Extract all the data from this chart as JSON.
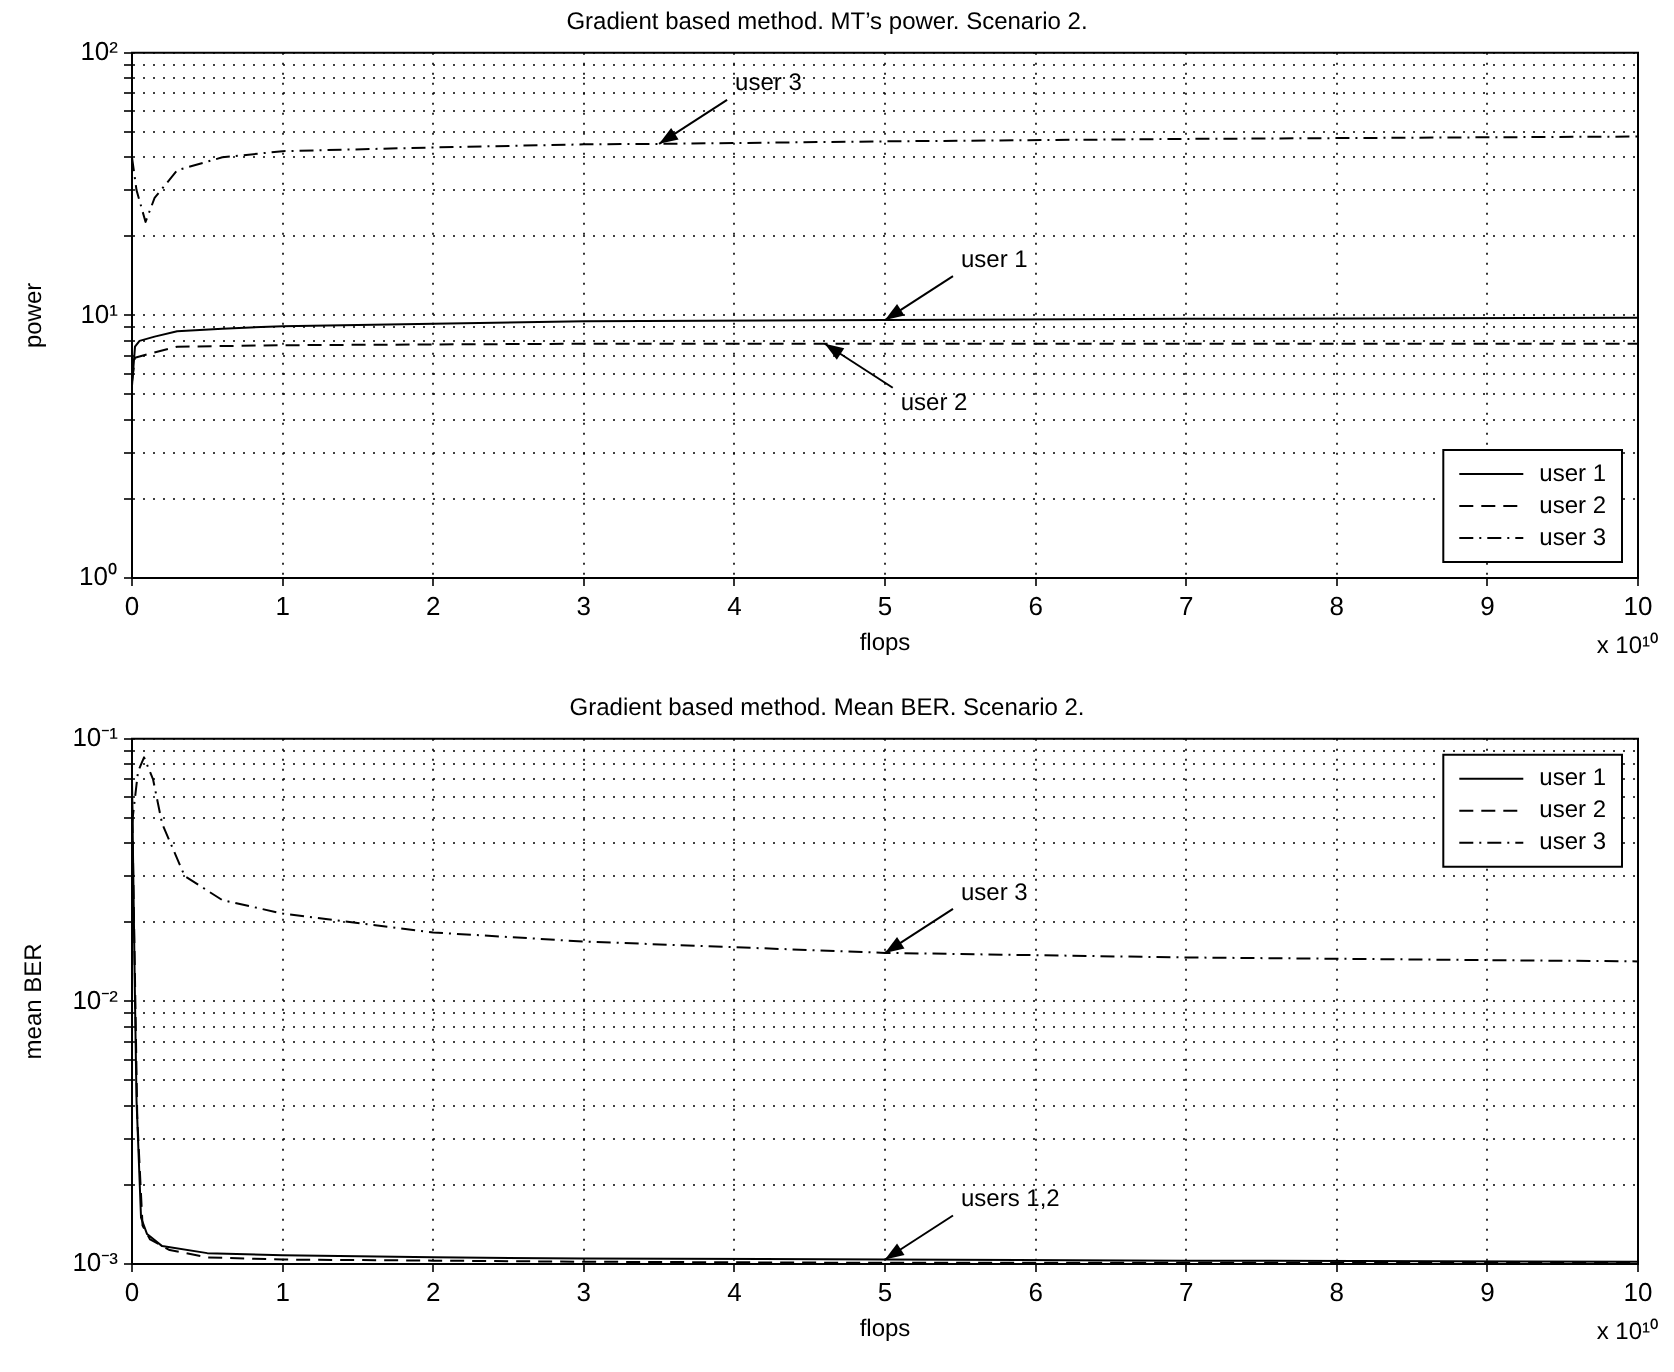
{
  "chart_data": [
    {
      "type": "line",
      "title": "Gradient based method. MT’s power. Scenario 2.",
      "xlabel": "flops",
      "ylabel": "power",
      "log": "y",
      "grid": true,
      "legend": "bottom right",
      "xlim": [
        0,
        10
      ],
      "xticks": [
        0,
        1,
        2,
        3,
        4,
        5,
        6,
        7,
        8,
        9,
        10
      ],
      "ylim": [
        1,
        100
      ],
      "yticks": [
        {
          "value": 1,
          "label": "10⁰"
        },
        {
          "value": 2,
          "label": null
        },
        {
          "value": 3,
          "label": null
        },
        {
          "value": 4,
          "label": null
        },
        {
          "value": 5,
          "label": null
        },
        {
          "value": 6,
          "label": null
        },
        {
          "value": 7,
          "label": null
        },
        {
          "value": 8,
          "label": null
        },
        {
          "value": 9,
          "label": null
        },
        {
          "value": 10,
          "label": "10¹"
        },
        {
          "value": 20,
          "label": null
        },
        {
          "value": 30,
          "label": null
        },
        {
          "value": 40,
          "label": null
        },
        {
          "value": 50,
          "label": null
        },
        {
          "value": 60,
          "label": null
        },
        {
          "value": 70,
          "label": null
        },
        {
          "value": 80,
          "label": null
        },
        {
          "value": 90,
          "label": null
        },
        {
          "value": 100,
          "label": "10²"
        }
      ],
      "series": [
        {
          "name": "user 1",
          "color": "#000000",
          "line_style": "solid",
          "x": [
            0,
            0.02,
            0.05,
            0.15,
            0.3,
            0.6,
            1,
            2,
            3,
            5,
            7,
            10
          ],
          "values": [
            5.4,
            7.6,
            8.0,
            8.3,
            8.7,
            8.9,
            9.1,
            9.3,
            9.5,
            9.6,
            9.7,
            9.8
          ]
        },
        {
          "name": "user 2",
          "color": "#000000",
          "line_style": "dashed",
          "x": [
            0,
            0.02,
            0.1,
            0.3,
            1,
            3,
            5,
            10
          ],
          "values": [
            5.6,
            6.9,
            7.1,
            7.6,
            7.7,
            7.8,
            7.8,
            7.8
          ]
        },
        {
          "name": "user 3",
          "color": "#000000",
          "line_style": "dashdot",
          "x": [
            0,
            0.03,
            0.09,
            0.15,
            0.3,
            0.6,
            1,
            2,
            3,
            3.5,
            5,
            7,
            10
          ],
          "values": [
            40,
            30,
            22.7,
            28,
            35.7,
            40,
            42.2,
            43.6,
            44.8,
            45,
            46,
            47,
            48
          ]
        }
      ],
      "annotations": [
        {
          "text": "user 3",
          "x": 3.5,
          "y": 45
        },
        {
          "text": "user 1",
          "x": 5,
          "y": 9.6
        },
        {
          "text": "user 2",
          "x": 4.6,
          "y": 7.8
        },
        "x 10¹⁰"
      ]
    },
    {
      "type": "line",
      "title": "Gradient based method. Mean BER. Scenario 2.",
      "xlabel": "flops",
      "ylabel": "mean BER",
      "log": "y",
      "grid": true,
      "legend": "top right",
      "xlim": [
        0,
        10
      ],
      "xticks": [
        0,
        1,
        2,
        3,
        4,
        5,
        6,
        7,
        8,
        9,
        10
      ],
      "ylim": [
        0.001,
        0.1
      ],
      "yticks": [
        {
          "value": 0.001,
          "label": "10⁻³"
        },
        {
          "value": 0.002,
          "label": null
        },
        {
          "value": 0.003,
          "label": null
        },
        {
          "value": 0.004,
          "label": null
        },
        {
          "value": 0.005,
          "label": null
        },
        {
          "value": 0.006,
          "label": null
        },
        {
          "value": 0.007,
          "label": null
        },
        {
          "value": 0.008,
          "label": null
        },
        {
          "value": 0.009,
          "label": null
        },
        {
          "value": 0.01,
          "label": "10⁻²"
        },
        {
          "value": 0.02,
          "label": null
        },
        {
          "value": 0.03,
          "label": null
        },
        {
          "value": 0.04,
          "label": null
        },
        {
          "value": 0.05,
          "label": null
        },
        {
          "value": 0.06,
          "label": null
        },
        {
          "value": 0.07,
          "label": null
        },
        {
          "value": 0.08,
          "label": null
        },
        {
          "value": 0.09,
          "label": null
        },
        {
          "value": 0.1,
          "label": "10⁻¹"
        }
      ],
      "series": [
        {
          "name": "user 1",
          "color": "#000000",
          "line_style": "solid",
          "x": [
            0,
            0.02,
            0.03,
            0.06,
            0.1,
            0.2,
            0.5,
            1,
            2,
            3,
            5,
            7,
            10
          ],
          "values": [
            0.069,
            0.01,
            0.0042,
            0.0015,
            0.0013,
            0.00117,
            0.0011,
            0.00108,
            0.00106,
            0.00105,
            0.00104,
            0.00103,
            0.00102
          ]
        },
        {
          "name": "user 2",
          "color": "#000000",
          "line_style": "dashed",
          "x": [
            0,
            0.02,
            0.035,
            0.07,
            0.12,
            0.25,
            0.5,
            1,
            2,
            3,
            5,
            7,
            10
          ],
          "values": [
            0.06,
            0.012,
            0.0036,
            0.0014,
            0.00124,
            0.00113,
            0.00106,
            0.00104,
            0.00103,
            0.00102,
            0.00101,
            0.00101,
            0.00101
          ]
        },
        {
          "name": "user 3",
          "color": "#000000",
          "line_style": "dashdot",
          "x": [
            0,
            0.04,
            0.08,
            0.14,
            0.2,
            0.35,
            0.6,
            1,
            2,
            3,
            5,
            7,
            10
          ],
          "values": [
            0.0475,
            0.075,
            0.085,
            0.07,
            0.0475,
            0.03,
            0.0243,
            0.0216,
            0.0183,
            0.0169,
            0.0153,
            0.0147,
            0.0142
          ]
        }
      ],
      "annotations": [
        {
          "text": "user 3",
          "x": 5,
          "y": 0.0153
        },
        {
          "text": "users 1,2",
          "x": 5,
          "y": 0.00104
        },
        "x 10¹⁰"
      ]
    }
  ]
}
